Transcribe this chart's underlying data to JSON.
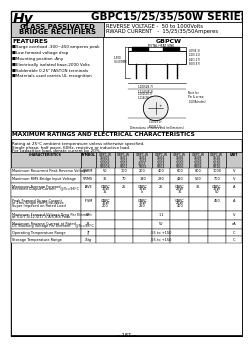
{
  "title": "GBPC15/25/35/50W SERIES",
  "logo_text": "Hy",
  "header_left_line1": "GLASS PASSIVATED",
  "header_left_line2": "BRIDGE RECTIFIERS",
  "header_right_line1": "REVERSE VOLTAGE -  50 to 1000Volts",
  "header_right_line2": "RWARD CURRENT   -  15/25/35/50Amperes",
  "features_title": "FEATURES",
  "features": [
    "■Surge overload -300~450 amperes peak",
    "■Low forward voltage drop",
    "■Mounting position :Any",
    "■Electrically isolated base-2000 Volts",
    "■Solderable 0.25\" FASTON terminals",
    "■Materials used carries UL recognition"
  ],
  "diagram_title": "GBPCW",
  "max_ratings_title": "MAXIMUM RATINGS AND ELECTRICAL CHARACTERISTICS",
  "rating_note1": "Rating at 25°C ambient temperature unless otherwise specified.",
  "rating_note2": "Single phase, half wave, 60Hz, resistive or inductive load.",
  "rating_note3": "For capacitive load, derate current by 20%.",
  "page_number": "~ 187 ~",
  "bg_color": "#ffffff",
  "header_bg": "#c8c8c8",
  "table_header_bg": "#c8c8c8",
  "border_color": "#000000"
}
